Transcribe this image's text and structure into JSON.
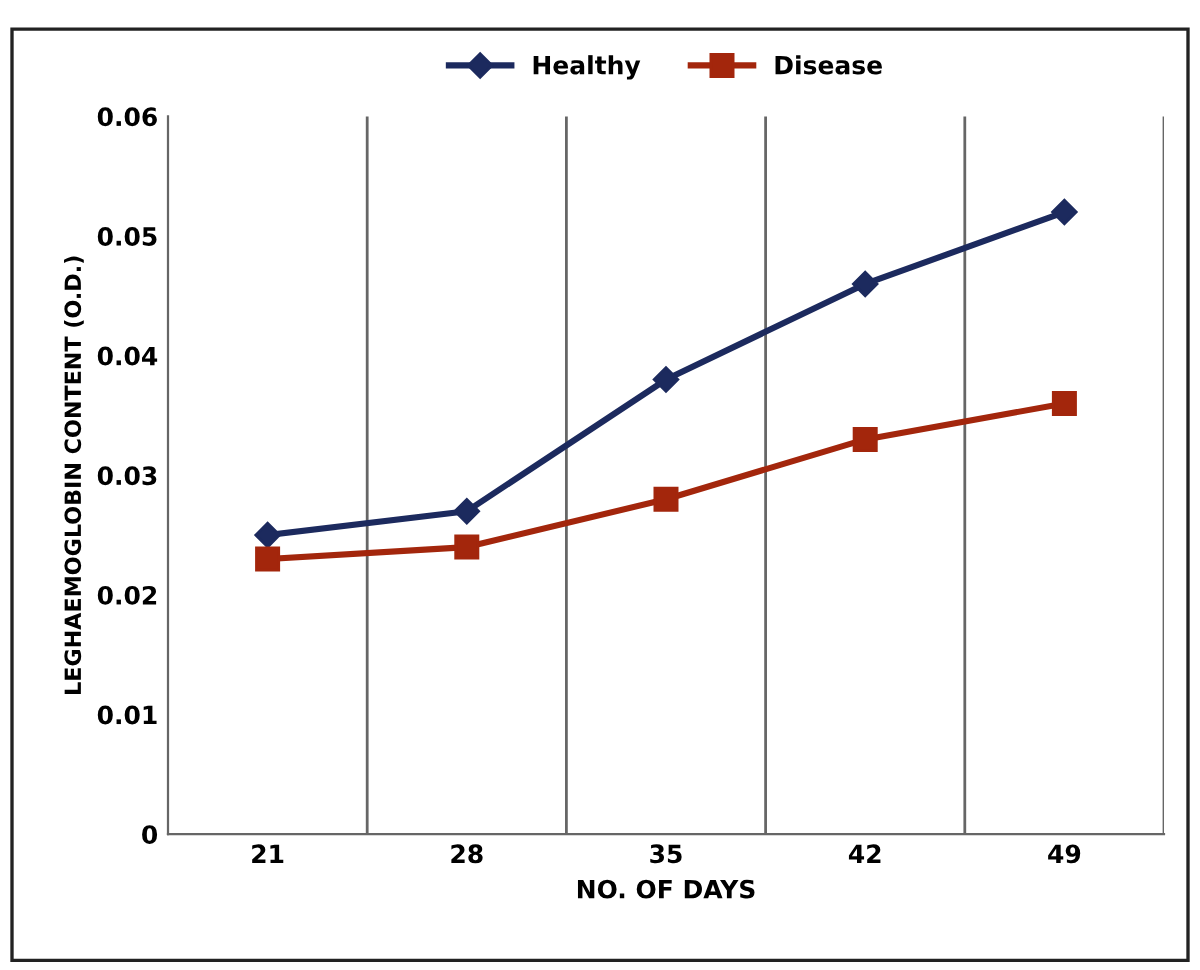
{
  "chart_data": {
    "type": "line",
    "xlabel": "NO. OF DAYS",
    "ylabel": "LEGHAEMOGLOBIN CONTENT (O.D.)",
    "categories": [
      "21",
      "28",
      "35",
      "42",
      "49"
    ],
    "series": [
      {
        "name": "Healthy",
        "color": "#1c2a5e",
        "marker": "diamond",
        "values": [
          0.025,
          0.027,
          0.038,
          0.046,
          0.052
        ]
      },
      {
        "name": "Disease",
        "color": "#a3260c",
        "marker": "square",
        "values": [
          0.023,
          0.024,
          0.028,
          0.033,
          0.036
        ]
      }
    ],
    "ylim": [
      0,
      0.06
    ],
    "yticks": [
      0,
      0.01,
      0.02,
      0.03,
      0.04,
      0.05,
      0.06
    ],
    "grid": "x",
    "legend": "top",
    "line_style": "solid"
  }
}
